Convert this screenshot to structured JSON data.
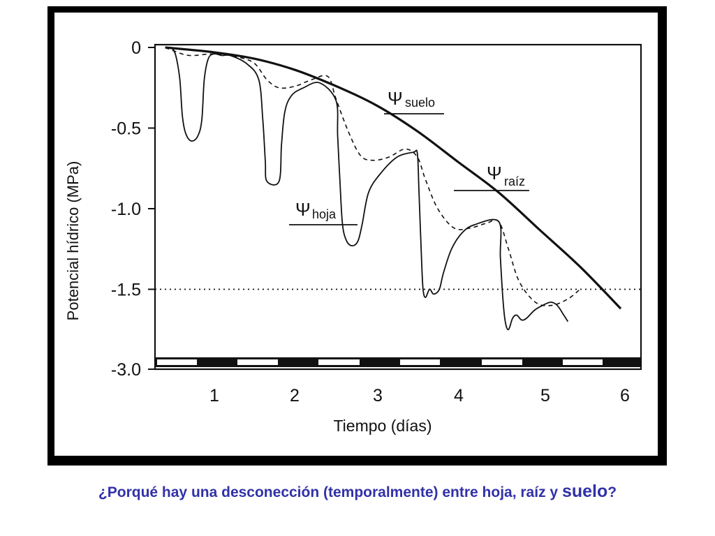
{
  "chart_data": {
    "type": "line",
    "title": "",
    "xlabel": "Tiempo (días)",
    "ylabel": "Potencial hídrico (MPa)",
    "x_ticks": [
      "1",
      "2",
      "3",
      "4",
      "5",
      "6"
    ],
    "y_ticks": [
      "0",
      "-0.5",
      "-1.0",
      "-1.5",
      "-3.0"
    ],
    "ylim": [
      -3.0,
      0
    ],
    "y_axis_break": "-1.75 a -3.0",
    "reference_line": {
      "y": -1.5,
      "style": "dotted"
    },
    "day_night_bar": "franjas alternas blancas (día) y negras (noche) sobre el eje x",
    "series": [
      {
        "name": "Ψsuelo",
        "label_symbol": "Ψ",
        "label_sub": "suelo",
        "style": "solid-thick",
        "points": [
          [
            0.4,
            0
          ],
          [
            1.0,
            -0.03
          ],
          [
            1.5,
            -0.07
          ],
          [
            2.0,
            -0.14
          ],
          [
            2.5,
            -0.24
          ],
          [
            3.0,
            -0.36
          ],
          [
            3.5,
            -0.52
          ],
          [
            4.0,
            -0.71
          ],
          [
            4.5,
            -0.9
          ],
          [
            5.0,
            -1.13
          ],
          [
            5.5,
            -1.36
          ],
          [
            6.0,
            -1.62
          ]
        ]
      },
      {
        "name": "Ψraíz",
        "label_symbol": "Ψ",
        "label_sub": "raíz",
        "style": "dashed",
        "points": [
          [
            0.4,
            0
          ],
          [
            0.5,
            -0.02
          ],
          [
            0.7,
            -0.05
          ],
          [
            1.0,
            -0.04
          ],
          [
            1.3,
            -0.06
          ],
          [
            1.5,
            -0.1
          ],
          [
            1.65,
            -0.2
          ],
          [
            1.8,
            -0.25
          ],
          [
            2.0,
            -0.24
          ],
          [
            2.2,
            -0.2
          ],
          [
            2.4,
            -0.18
          ],
          [
            2.5,
            -0.32
          ],
          [
            2.65,
            -0.52
          ],
          [
            2.8,
            -0.67
          ],
          [
            2.95,
            -0.7
          ],
          [
            3.15,
            -0.68
          ],
          [
            3.35,
            -0.63
          ],
          [
            3.5,
            -0.68
          ],
          [
            3.6,
            -0.82
          ],
          [
            3.75,
            -1.0
          ],
          [
            3.95,
            -1.12
          ],
          [
            4.15,
            -1.12
          ],
          [
            4.35,
            -1.09
          ],
          [
            4.5,
            -1.08
          ],
          [
            4.62,
            -1.25
          ],
          [
            4.75,
            -1.45
          ],
          [
            4.95,
            -1.58
          ],
          [
            5.15,
            -1.6
          ],
          [
            5.35,
            -1.56
          ],
          [
            5.5,
            -1.5
          ]
        ]
      },
      {
        "name": "Ψhoja",
        "label_symbol": "Ψ",
        "label_sub": "hoja",
        "style": "solid-thin",
        "points": [
          [
            0.48,
            0
          ],
          [
            0.53,
            -0.05
          ],
          [
            0.58,
            -0.2
          ],
          [
            0.61,
            -0.42
          ],
          [
            0.65,
            -0.53
          ],
          [
            0.72,
            -0.58
          ],
          [
            0.8,
            -0.55
          ],
          [
            0.85,
            -0.45
          ],
          [
            0.88,
            -0.2
          ],
          [
            0.93,
            -0.07
          ],
          [
            1.0,
            -0.04
          ],
          [
            1.1,
            -0.05
          ],
          [
            1.2,
            -0.05
          ],
          [
            1.4,
            -0.1
          ],
          [
            1.55,
            -0.2
          ],
          [
            1.6,
            -0.45
          ],
          [
            1.63,
            -0.7
          ],
          [
            1.65,
            -0.83
          ],
          [
            1.8,
            -0.83
          ],
          [
            1.83,
            -0.6
          ],
          [
            1.87,
            -0.4
          ],
          [
            1.95,
            -0.3
          ],
          [
            2.1,
            -0.25
          ],
          [
            2.3,
            -0.22
          ],
          [
            2.5,
            -0.33
          ],
          [
            2.52,
            -0.55
          ],
          [
            2.55,
            -0.85
          ],
          [
            2.58,
            -1.1
          ],
          [
            2.63,
            -1.2
          ],
          [
            2.7,
            -1.23
          ],
          [
            2.77,
            -1.2
          ],
          [
            2.82,
            -1.1
          ],
          [
            2.9,
            -0.9
          ],
          [
            3.05,
            -0.78
          ],
          [
            3.25,
            -0.68
          ],
          [
            3.45,
            -0.65
          ],
          [
            3.5,
            -0.66
          ],
          [
            3.52,
            -0.9
          ],
          [
            3.55,
            -1.3
          ],
          [
            3.57,
            -1.5
          ],
          [
            3.6,
            -1.55
          ],
          [
            3.65,
            -1.5
          ],
          [
            3.7,
            -1.53
          ],
          [
            3.77,
            -1.5
          ],
          [
            3.82,
            -1.4
          ],
          [
            3.92,
            -1.25
          ],
          [
            4.05,
            -1.15
          ],
          [
            4.2,
            -1.1
          ],
          [
            4.5,
            -1.08
          ],
          [
            4.52,
            -1.3
          ],
          [
            4.55,
            -1.55
          ],
          [
            4.58,
            -1.7
          ],
          [
            4.62,
            -1.75
          ],
          [
            4.67,
            -1.68
          ],
          [
            4.72,
            -1.66
          ],
          [
            4.78,
            -1.69
          ],
          [
            4.84,
            -1.68
          ],
          [
            4.94,
            -1.63
          ],
          [
            5.04,
            -1.6
          ],
          [
            5.14,
            -1.58
          ],
          [
            5.22,
            -1.6
          ],
          [
            5.3,
            -1.66
          ],
          [
            5.35,
            -1.7
          ]
        ]
      }
    ]
  },
  "question": {
    "part1": "¿Porqué hay una desconección (temporalmente) entre hoja, raíz y",
    "part2": "suelo",
    "part3": "?"
  },
  "colors": {
    "question_text": "#3131a8",
    "frame": "#000000",
    "lines": "#111111"
  }
}
